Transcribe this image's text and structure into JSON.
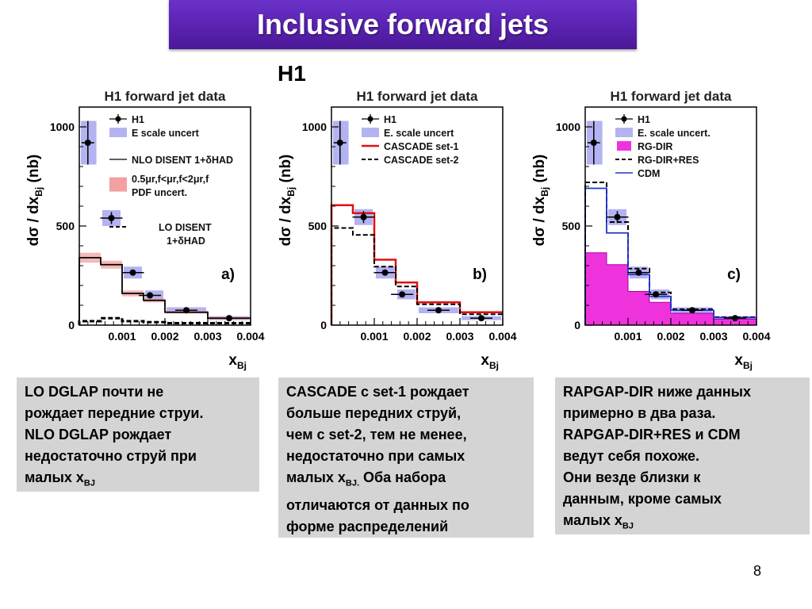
{
  "slide": {
    "title": "Inclusive forward jets",
    "experiment": "H1",
    "page_number": "8"
  },
  "captions": [
    {
      "lines": [
        "LO DGLAP почти не",
        "рождает передние струи.",
        "NLO DGLAP рождает",
        "недостаточно струй при",
        "малых x"
      ],
      "sub": "BJ"
    },
    {
      "lines": [
        "CASCADE с set-1 рождает",
        "больше передних струй,",
        "чем с set-2,  тем не менее,",
        "недостаточно при самых",
        "малых x"
      ],
      "sub": "BJ.",
      "tail": " Оба набора",
      "lines2": [
        "отличаются от данных по",
        "форме распределений"
      ]
    },
    {
      "lines": [
        "RAPGAP-DIR ниже данных",
        "примерно в два раза.",
        "RAPGAP-DIR+RES и CDM",
        "ведут себя похоже.",
        "Они везде близки к",
        "данным, кроме самых",
        "малых x"
      ],
      "sub": "BJ"
    }
  ],
  "chart_data": [
    {
      "type": "line",
      "title": "H1 forward jet data",
      "panel_label": "a)",
      "ylabel": "dσ / dx",
      "ylabel_sub": "Bj",
      "ylabel_unit": "(nb)",
      "xlabel": "x",
      "xlabel_sub": "Bj",
      "xlim": [
        0,
        0.004
      ],
      "ylim": [
        0,
        1100
      ],
      "xticks": [
        "0.001",
        "0.002",
        "0.003",
        "0.004"
      ],
      "yticks": [
        "0",
        "500",
        "1000"
      ],
      "bin_edges": [
        0.0,
        0.0005,
        0.001,
        0.0015,
        0.002,
        0.003,
        0.004
      ],
      "data_points": {
        "x": [
          0.0002,
          0.00075,
          0.00125,
          0.00165,
          0.0025,
          0.0035
        ],
        "y": [
          920,
          540,
          265,
          150,
          75,
          35
        ],
        "err": [
          110,
          30,
          15,
          10,
          6,
          5
        ],
        "escale_err": [
          110,
          40,
          30,
          25,
          15,
          10
        ]
      },
      "legend": [
        "H1",
        "E scale uncert",
        "NLO DISENT 1+δHAD",
        "0.5μr,f<μr,f<2μr,f",
        "PDF uncert.",
        "LO DISENT",
        "1+δHAD"
      ],
      "series": [
        {
          "name": "NLO DISENT 1+δHAD",
          "style": "solid-black",
          "values": [
            340,
            305,
            160,
            125,
            65,
            35
          ]
        },
        {
          "name": "LO DISENT 1+δHAD",
          "style": "dashed-black",
          "values": [
            20,
            35,
            20,
            15,
            10,
            10
          ]
        }
      ],
      "band": {
        "name": "PDF uncert.",
        "lo": [
          315,
          285,
          145,
          115,
          58,
          28
        ],
        "hi": [
          365,
          325,
          175,
          135,
          72,
          42
        ]
      }
    },
    {
      "type": "line",
      "title": "H1 forward jet data",
      "panel_label": "b)",
      "ylabel": "dσ / dx",
      "ylabel_sub": "Bj",
      "ylabel_unit": "(nb)",
      "xlabel": "x",
      "xlabel_sub": "Bj",
      "xlim": [
        0,
        0.004
      ],
      "ylim": [
        0,
        1100
      ],
      "xticks": [
        "0.001",
        "0.002",
        "0.003",
        "0.004"
      ],
      "yticks": [
        "0",
        "500",
        "1000"
      ],
      "bin_edges": [
        0.0,
        0.0005,
        0.001,
        0.0015,
        0.002,
        0.003,
        0.004
      ],
      "data_points": {
        "x": [
          0.0002,
          0.00075,
          0.00125,
          0.00165,
          0.0025,
          0.0035
        ],
        "y": [
          920,
          545,
          265,
          155,
          75,
          35
        ],
        "err": [
          110,
          30,
          15,
          10,
          6,
          5
        ],
        "escale_err": [
          110,
          40,
          30,
          25,
          15,
          10
        ]
      },
      "legend": [
        "H1",
        "E. scale uncert",
        "CASCADE set-1",
        "CASCADE set-2"
      ],
      "series": [
        {
          "name": "CASCADE set-1",
          "style": "solid-red",
          "values": [
            605,
            565,
            330,
            215,
            115,
            65
          ]
        },
        {
          "name": "CASCADE set-2",
          "style": "dashed-black",
          "values": [
            490,
            455,
            295,
            195,
            105,
            55
          ]
        }
      ]
    },
    {
      "type": "line",
      "title": "H1 forward jet data",
      "panel_label": "c)",
      "ylabel": "dσ / dx",
      "ylabel_sub": "Bj",
      "ylabel_unit": "(nb)",
      "xlabel": "x",
      "xlabel_sub": "Bj",
      "xlim": [
        0,
        0.004
      ],
      "ylim": [
        0,
        1100
      ],
      "xticks": [
        "0.001",
        "0.002",
        "0.003",
        "0.004"
      ],
      "yticks": [
        "0",
        "500",
        "1000"
      ],
      "bin_edges": [
        0.0,
        0.0005,
        0.001,
        0.0015,
        0.002,
        0.003,
        0.004
      ],
      "data_points": {
        "x": [
          0.0002,
          0.00075,
          0.00125,
          0.00165,
          0.0025,
          0.0035
        ],
        "y": [
          920,
          545,
          265,
          155,
          75,
          35
        ],
        "err": [
          110,
          30,
          15,
          10,
          6,
          5
        ],
        "escale_err": [
          110,
          40,
          30,
          25,
          15,
          10
        ]
      },
      "legend": [
        "H1",
        "E. scale uncert.",
        "RG-DIR",
        "RG-DIR+RES",
        "CDM"
      ],
      "series": [
        {
          "name": "RG-DIR",
          "style": "filled-magenta",
          "values": [
            365,
            305,
            170,
            115,
            60,
            30
          ]
        },
        {
          "name": "RG-DIR+RES",
          "style": "dashed-black",
          "values": [
            720,
            520,
            285,
            165,
            80,
            40
          ]
        },
        {
          "name": "CDM",
          "style": "solid-blue",
          "values": [
            690,
            465,
            255,
            145,
            75,
            38
          ]
        }
      ]
    }
  ],
  "colors": {
    "title_bar": "#5a22b0",
    "escale_box": "#b3b3f2",
    "cascade1": "#e01010",
    "rgdir_fill": "#ee33dd",
    "cdm": "#2233cc",
    "pdf_band": "#f2a0a0",
    "caption_bg": "#d4d4d4"
  }
}
